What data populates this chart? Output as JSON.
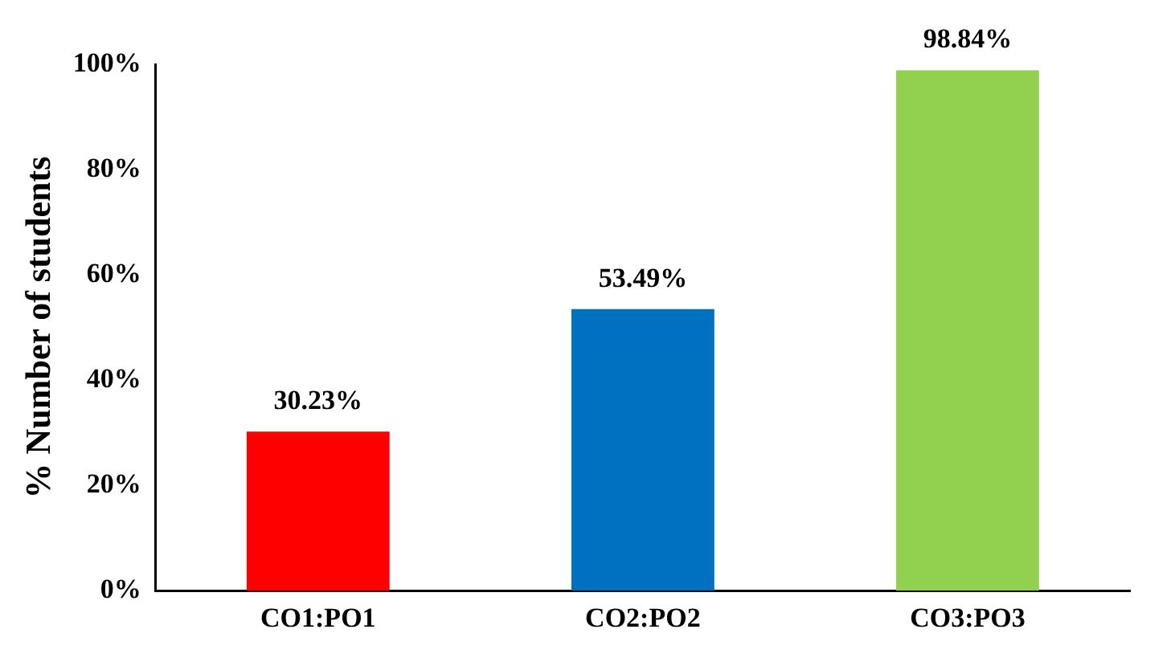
{
  "chart_data": {
    "type": "bar",
    "ylabel": "% Number of students",
    "categories": [
      "CO1:PO1",
      "CO2:PO2",
      "CO3:PO3"
    ],
    "values": [
      30.23,
      53.49,
      98.84
    ],
    "colors": [
      "#ff0000",
      "#0070c0",
      "#92d050"
    ],
    "value_labels": [
      "30.23%",
      "53.49%",
      "98.84%"
    ],
    "ylim": [
      0,
      100
    ],
    "yticks": [
      {
        "value": 0,
        "label": "0%"
      },
      {
        "value": 20,
        "label": "20%"
      },
      {
        "value": 40,
        "label": "40%"
      },
      {
        "value": 60,
        "label": "60%"
      },
      {
        "value": 80,
        "label": "80%"
      },
      {
        "value": 100,
        "label": "100%"
      }
    ],
    "grid": false,
    "legend": false
  }
}
